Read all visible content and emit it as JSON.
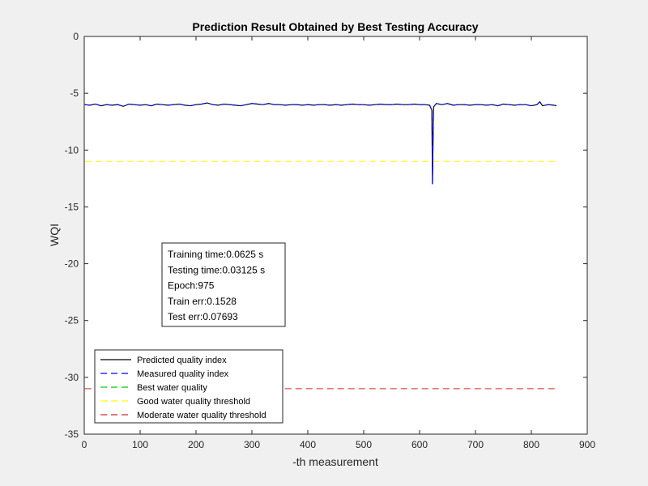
{
  "chart_data": {
    "type": "line",
    "title": "Prediction Result Obtained by Best Testing Accuracy",
    "xlabel": "-th measurement",
    "ylabel": "WQI",
    "xlim": [
      0,
      900
    ],
    "ylim": [
      -35,
      0
    ],
    "xticks": [
      0,
      100,
      200,
      300,
      400,
      500,
      600,
      700,
      800,
      900
    ],
    "yticks": [
      0,
      -5,
      -10,
      -15,
      -20,
      -25,
      -30,
      -35
    ],
    "grid": false,
    "legend_position": "bottom-left",
    "series": [
      {
        "name": "Predicted quality index",
        "color": "#000000",
        "style": "solid",
        "x": [
          1,
          10,
          20,
          30,
          40,
          50,
          60,
          70,
          80,
          90,
          100,
          110,
          120,
          130,
          140,
          150,
          160,
          170,
          180,
          190,
          200,
          210,
          220,
          230,
          240,
          250,
          260,
          270,
          280,
          290,
          300,
          310,
          320,
          330,
          340,
          350,
          360,
          370,
          380,
          390,
          400,
          410,
          420,
          430,
          440,
          450,
          460,
          470,
          480,
          490,
          500,
          510,
          520,
          530,
          540,
          550,
          560,
          570,
          580,
          590,
          600,
          610,
          618,
          622,
          623,
          625,
          630,
          640,
          650,
          660,
          670,
          680,
          690,
          700,
          710,
          720,
          730,
          740,
          750,
          760,
          770,
          780,
          790,
          800,
          810,
          815,
          820,
          830,
          840,
          845
        ],
        "values": [
          -6.0,
          -6.05,
          -5.95,
          -6.1,
          -6.0,
          -6.05,
          -6.0,
          -6.15,
          -5.95,
          -6.0,
          -6.05,
          -6.0,
          -6.1,
          -5.95,
          -6.0,
          -6.05,
          -6.0,
          -5.95,
          -6.05,
          -6.1,
          -6.0,
          -5.95,
          -5.85,
          -6.0,
          -6.05,
          -5.95,
          -6.0,
          -6.05,
          -6.1,
          -6.0,
          -5.9,
          -5.95,
          -6.0,
          -5.9,
          -6.0,
          -6.0,
          -6.05,
          -6.0,
          -6.0,
          -6.05,
          -6.0,
          -6.05,
          -6.0,
          -6.0,
          -6.05,
          -6.0,
          -6.05,
          -6.0,
          -5.95,
          -6.0,
          -6.0,
          -6.05,
          -6.0,
          -5.95,
          -6.0,
          -6.0,
          -5.95,
          -6.0,
          -6.0,
          -5.95,
          -6.0,
          -6.0,
          -6.05,
          -6.5,
          -13.0,
          -6.2,
          -5.9,
          -6.0,
          -5.9,
          -6.05,
          -6.0,
          -6.0,
          -6.05,
          -6.0,
          -6.0,
          -6.05,
          -6.0,
          -6.1,
          -5.95,
          -6.0,
          -6.05,
          -6.0,
          -6.0,
          -6.1,
          -6.0,
          -5.75,
          -6.1,
          -6.0,
          -6.05,
          -6.1
        ]
      },
      {
        "name": "Measured quality index",
        "color": "#0000ff",
        "style": "dashed",
        "x": [
          1,
          10,
          20,
          30,
          40,
          50,
          60,
          70,
          80,
          90,
          100,
          110,
          120,
          130,
          140,
          150,
          160,
          170,
          180,
          190,
          200,
          210,
          220,
          230,
          240,
          250,
          260,
          270,
          280,
          290,
          300,
          310,
          320,
          330,
          340,
          350,
          360,
          370,
          380,
          390,
          400,
          410,
          420,
          430,
          440,
          450,
          460,
          470,
          480,
          490,
          500,
          510,
          520,
          530,
          540,
          550,
          560,
          570,
          580,
          590,
          600,
          610,
          618,
          622,
          623,
          625,
          630,
          640,
          650,
          660,
          670,
          680,
          690,
          700,
          710,
          720,
          730,
          740,
          750,
          760,
          770,
          780,
          790,
          800,
          810,
          815,
          820,
          830,
          840,
          845
        ],
        "values": [
          -6.0,
          -6.05,
          -5.95,
          -6.1,
          -6.0,
          -6.05,
          -6.0,
          -6.15,
          -5.95,
          -6.0,
          -6.05,
          -6.0,
          -6.1,
          -5.95,
          -6.0,
          -6.05,
          -6.0,
          -5.95,
          -6.05,
          -6.1,
          -6.0,
          -5.95,
          -5.85,
          -6.0,
          -6.05,
          -5.95,
          -6.0,
          -6.05,
          -6.1,
          -6.0,
          -5.9,
          -5.95,
          -6.0,
          -5.9,
          -6.0,
          -6.0,
          -6.05,
          -6.0,
          -6.0,
          -6.05,
          -6.0,
          -6.05,
          -6.0,
          -6.0,
          -6.05,
          -6.0,
          -6.05,
          -6.0,
          -5.95,
          -6.0,
          -6.0,
          -6.05,
          -6.0,
          -5.95,
          -6.0,
          -6.0,
          -5.95,
          -6.0,
          -6.0,
          -5.95,
          -6.0,
          -6.0,
          -6.05,
          -6.5,
          -13.0,
          -6.2,
          -5.9,
          -6.0,
          -5.9,
          -6.05,
          -6.0,
          -6.0,
          -6.05,
          -6.0,
          -6.0,
          -6.05,
          -6.0,
          -6.1,
          -5.95,
          -6.0,
          -6.05,
          -6.0,
          -6.0,
          -6.1,
          -6.0,
          -5.75,
          -6.1,
          -6.0,
          -6.05,
          -6.1
        ]
      },
      {
        "name": "Best water quality",
        "color": "#00cc00",
        "style": "dashed",
        "x": [
          1,
          845
        ],
        "values": [
          0,
          0
        ]
      },
      {
        "name": "Good water quality threshold",
        "color": "#ffff00",
        "style": "dashed",
        "x": [
          1,
          845
        ],
        "values": [
          -11,
          -11
        ]
      },
      {
        "name": "Moderate water quality threshold",
        "color": "#d62728",
        "style": "dashed",
        "x": [
          1,
          845
        ],
        "values": [
          -31,
          -31
        ]
      }
    ],
    "annotations": [
      "Training time:0.0625 s",
      "Testing time:0.03125 s",
      "Epoch:975",
      "Train err:0.1528",
      "Test err:0.07693"
    ]
  }
}
